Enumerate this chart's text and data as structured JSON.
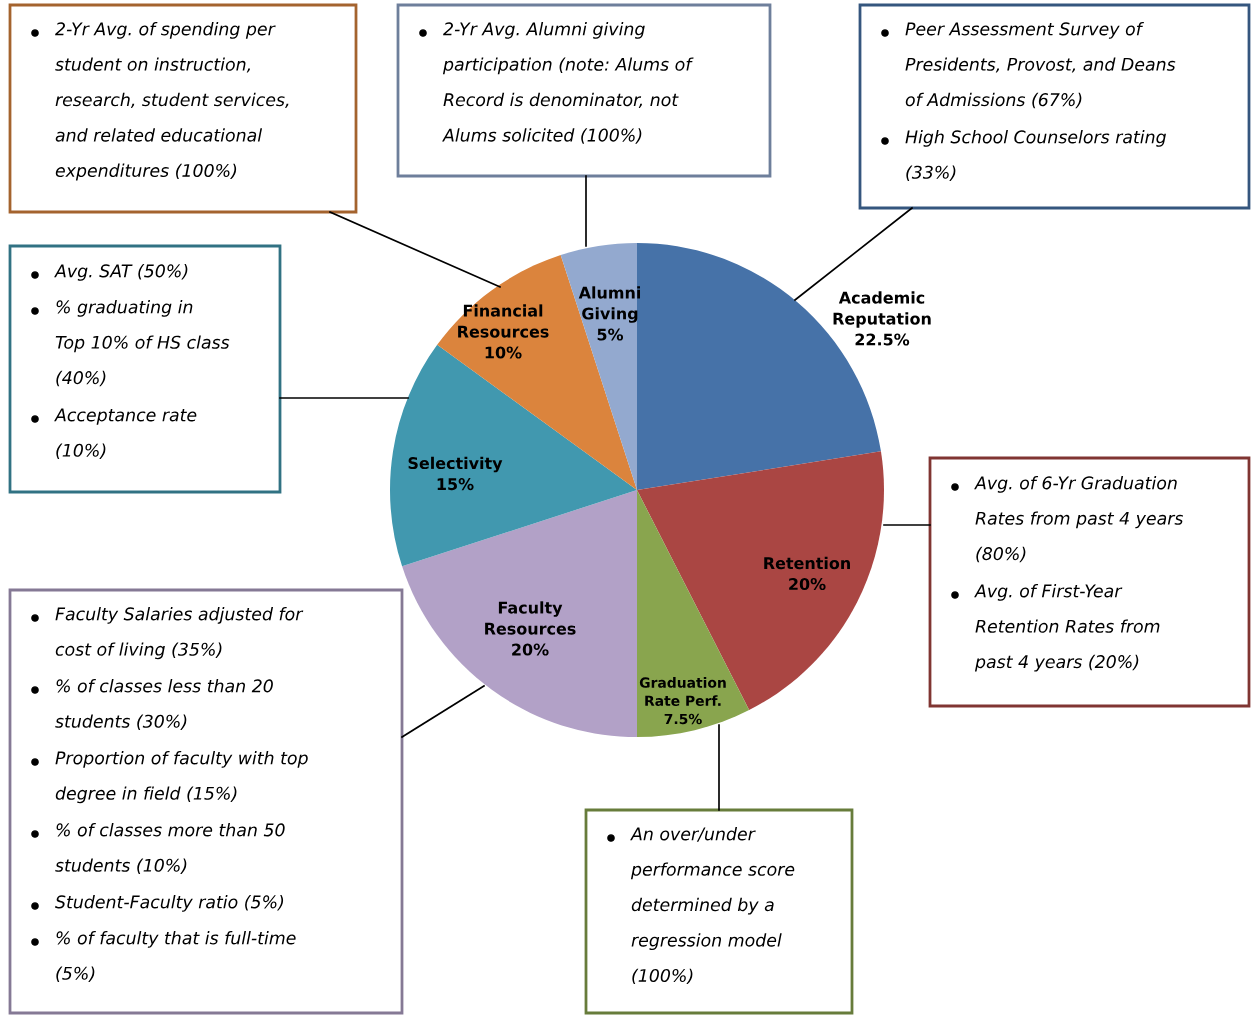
{
  "chart_data": {
    "type": "pie",
    "categories": [
      "Academic\nReputation",
      "Retention",
      "Graduation\nRate Perf.",
      "Faculty\nResources",
      "Selectivity",
      "Financial\nResources",
      "Alumni\nGiving"
    ],
    "values": [
      22.5,
      20,
      7.5,
      20,
      15,
      10,
      5
    ],
    "colors": [
      "#4672a8",
      "#aa4643",
      "#89a54e",
      "#b2a1c7",
      "#4198af",
      "#db843d",
      "#93a9cf"
    ],
    "value_labels": [
      "22.5%",
      "20%",
      "7.5%",
      "20%",
      "15%",
      "10%",
      "5%"
    ],
    "annotations": [
      "Peer Assessment Survey of\nPresidents, Provost, and Deans\nof Admissions (67%)",
      "High School Counselors rating\n(33%)",
      "Avg. of 6-Yr Graduation\nRates from past 4 years\n(80%)",
      "Avg. of First-Year\nRetention Rates from\npast 4 years (20%)",
      "An over/under\nperformance score\ndetermined by a\nregression model\n(100%)",
      "Faculty Salaries adjusted for\ncost of living (35%)",
      "% of classes less than 20\nstudents (30%)",
      "Proportion of faculty with top\ndegree in field (15%)",
      "% of classes more than 50\nstudents (10%)",
      "Student-Faculty ratio (5%)",
      "% of faculty that is full-time\n(5%)",
      "Avg. SAT (50%)",
      "% graduating in\nTop 10% of HS class\n(40%)",
      "Acceptance rate\n(10%)",
      "2-Yr Avg. of spending per\nstudent on instruction,\nresearch, student services,\nand related educational\nexpenditures (100%)",
      "2-Yr Avg. Alumni giving\nparticipation (note: Alums of\nRecord is denominator, not\nAlums solicited (100%)"
    ]
  }
}
